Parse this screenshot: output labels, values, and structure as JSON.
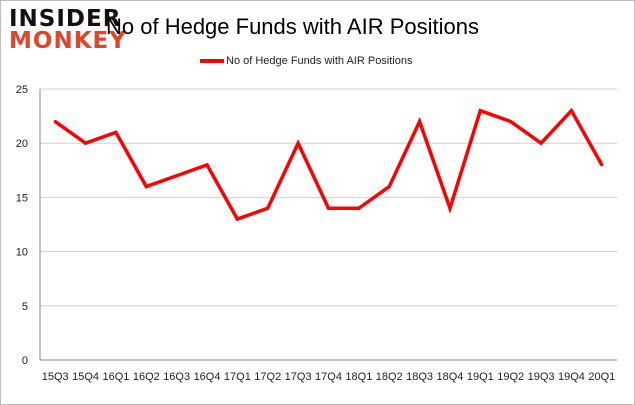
{
  "logo": {
    "line1": "INSIDER",
    "line2": "MONKEY"
  },
  "chart_data": {
    "type": "line",
    "title": "No of Hedge Funds with AIR Positions",
    "xlabel": "",
    "ylabel": "",
    "categories": [
      "15Q3",
      "15Q4",
      "16Q1",
      "16Q2",
      "16Q3",
      "16Q4",
      "17Q1",
      "17Q2",
      "17Q3",
      "17Q4",
      "18Q1",
      "18Q2",
      "18Q3",
      "18Q4",
      "19Q1",
      "19Q2",
      "19Q3",
      "19Q4",
      "20Q1"
    ],
    "series": [
      {
        "name": "No of Hedge Funds with AIR Positions",
        "color": "#ff0000",
        "values": [
          22,
          20,
          21,
          16,
          17,
          18,
          13,
          14,
          20,
          14,
          14,
          16,
          22,
          14,
          23,
          22,
          20,
          23,
          18
        ]
      }
    ],
    "ylim": [
      0,
      25
    ],
    "yticks": [
      0,
      5,
      10,
      15,
      20,
      25
    ],
    "grid": true,
    "legend": "top-center"
  }
}
